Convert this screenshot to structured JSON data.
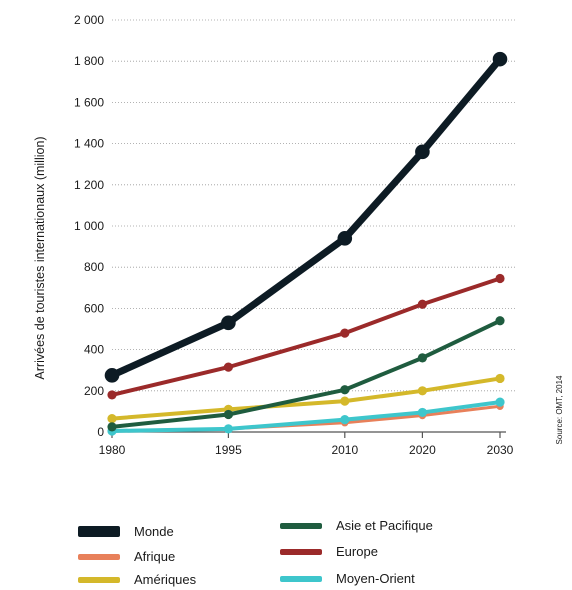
{
  "chart_data": {
    "type": "line",
    "ylabel": "Arrivées de touristes internationaux (million)",
    "xlabel": "",
    "source": "Source: OMT, 2014",
    "x": [
      1980,
      1995,
      2010,
      2020,
      2030
    ],
    "x_tick_labels": [
      "1980",
      "1995",
      "2010",
      "2020",
      "2030"
    ],
    "ylim": [
      0,
      2000
    ],
    "y_ticks": [
      0,
      200,
      400,
      600,
      800,
      1000,
      1200,
      1400,
      1600,
      1800,
      2000
    ],
    "y_tick_labels": [
      "0",
      "200",
      "400",
      "600",
      "800",
      "1 000",
      "1 200",
      "1 400",
      "1 600",
      "1 800",
      "2 000"
    ],
    "grid": "dotted-horizontal",
    "legend_position": "bottom",
    "series": [
      {
        "name": "Monde",
        "color": "#0d1b24",
        "values": [
          275,
          530,
          940,
          1360,
          1810
        ]
      },
      {
        "name": "Europe",
        "color": "#9b2a2a",
        "values": [
          180,
          315,
          480,
          620,
          745
        ]
      },
      {
        "name": "Asie et Pacifique",
        "color": "#1f5c3f",
        "values": [
          25,
          85,
          205,
          360,
          540
        ]
      },
      {
        "name": "Amériques",
        "color": "#d4b82a",
        "values": [
          65,
          110,
          150,
          200,
          260
        ]
      },
      {
        "name": "Moyen-Orient",
        "color": "#3ec6cc",
        "values": [
          5,
          15,
          60,
          95,
          145
        ]
      },
      {
        "name": "Afrique",
        "color": "#e8805a",
        "values": [
          5,
          15,
          45,
          80,
          125
        ]
      }
    ]
  },
  "legend": {
    "items": [
      {
        "label": "Monde",
        "color": "#0d1b24"
      },
      {
        "label": "Afrique",
        "color": "#e8805a"
      },
      {
        "label": "Amériques",
        "color": "#d4b82a"
      },
      {
        "label": "Asie et Pacifique",
        "color": "#1f5c3f"
      },
      {
        "label": "Europe",
        "color": "#9b2a2a"
      },
      {
        "label": "Moyen-Orient",
        "color": "#3ec6cc"
      }
    ]
  }
}
